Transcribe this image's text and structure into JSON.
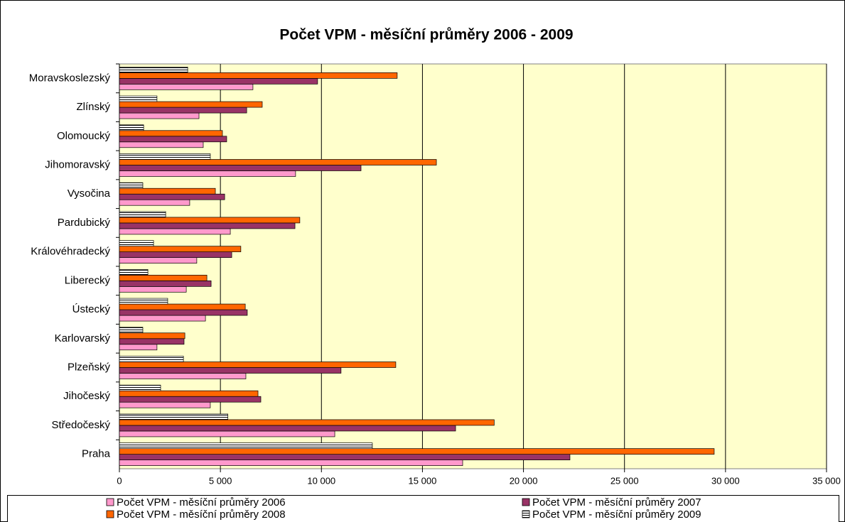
{
  "chart_data": {
    "type": "hbar",
    "title": "Počet VPM - měsíční průměry 2006 - 2009",
    "categories": [
      "Moravskoslezský",
      "Zlínský",
      "Olomoucký",
      "Jihomoravský",
      "Vysočina",
      "Pardubický",
      "Královéhradecký",
      "Liberecký",
      "Ústecký",
      "Karlovarský",
      "Plzeňský",
      "Jihočeský",
      "Středočeský",
      "Praha"
    ],
    "series": [
      {
        "name": "Počet VPM - měsíční průměry 2006",
        "color": "#ff99cc",
        "values": [
          6610,
          3940,
          4150,
          8720,
          3480,
          5490,
          3830,
          3310,
          4260,
          1860,
          6260,
          4500,
          10660,
          16990
        ]
      },
      {
        "name": "Počet VPM - měsíční průměry 2007",
        "color": "#993366",
        "values": [
          9810,
          6300,
          5310,
          11960,
          5210,
          8690,
          5560,
          4540,
          6330,
          3200,
          10970,
          7000,
          16640,
          22300
        ]
      },
      {
        "name": "Počet VPM - měsíční průměry 2008",
        "color": "#ff6600",
        "values": [
          13750,
          7070,
          5100,
          15690,
          4750,
          8930,
          6010,
          4330,
          6230,
          3240,
          13680,
          6860,
          18550,
          29440
        ]
      },
      {
        "name": "Počet VPM - měsíční průměry 2009",
        "color": "#ffffff",
        "hatch": true,
        "values": [
          3380,
          1860,
          1200,
          4500,
          1160,
          2290,
          1690,
          1410,
          2390,
          1160,
          3170,
          2040,
          5370,
          12520
        ]
      }
    ],
    "xlim": [
      0,
      35000
    ],
    "xticks": [
      0,
      {
        "value": 5000,
        "label": "5 000"
      },
      {
        "value": 10000,
        "label": "10 000"
      },
      {
        "value": 15000,
        "label": "15 000"
      },
      {
        "value": 20000,
        "label": "20 000"
      },
      {
        "value": 25000,
        "label": "25 000"
      },
      {
        "value": 30000,
        "label": "30 000"
      },
      {
        "value": 35000,
        "label": "35 000"
      }
    ],
    "grid": true,
    "background": "#ffffcc",
    "legend": "bottom"
  }
}
